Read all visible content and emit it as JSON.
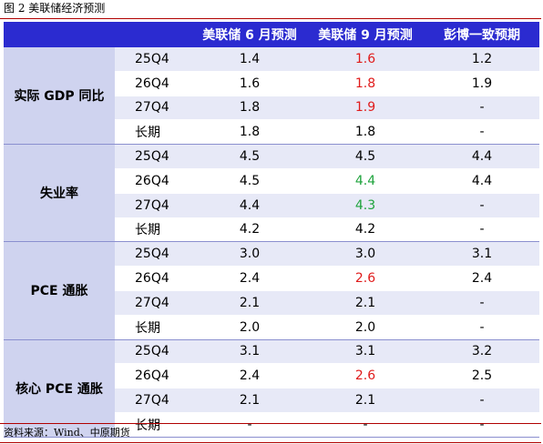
{
  "figure_title": "图 2  美联储经济预测",
  "source": "资料来源：Wind、中原期货",
  "header": [
    "",
    "",
    "美联储 6 月预测",
    "美联储 9 月预测",
    "彭博一致预期"
  ],
  "groups": [
    {
      "name": "实际 GDP 同比",
      "rows": [
        {
          "period": "25Q4",
          "jun": "1.4",
          "sep": "1.6",
          "sep_color": "red",
          "bbg": "1.2"
        },
        {
          "period": "26Q4",
          "jun": "1.6",
          "sep": "1.8",
          "sep_color": "red",
          "bbg": "1.9"
        },
        {
          "period": "27Q4",
          "jun": "1.8",
          "sep": "1.9",
          "sep_color": "red",
          "bbg": "-"
        },
        {
          "period": "长期",
          "jun": "1.8",
          "sep": "1.8",
          "sep_color": "",
          "bbg": "-"
        }
      ]
    },
    {
      "name": "失业率",
      "rows": [
        {
          "period": "25Q4",
          "jun": "4.5",
          "sep": "4.5",
          "sep_color": "",
          "bbg": "4.4"
        },
        {
          "period": "26Q4",
          "jun": "4.5",
          "sep": "4.4",
          "sep_color": "green",
          "bbg": "4.4"
        },
        {
          "period": "27Q4",
          "jun": "4.4",
          "sep": "4.3",
          "sep_color": "green",
          "bbg": "-"
        },
        {
          "period": "长期",
          "jun": "4.2",
          "sep": "4.2",
          "sep_color": "",
          "bbg": "-"
        }
      ]
    },
    {
      "name": "PCE 通胀",
      "rows": [
        {
          "period": "25Q4",
          "jun": "3.0",
          "sep": "3.0",
          "sep_color": "",
          "bbg": "3.1"
        },
        {
          "period": "26Q4",
          "jun": "2.4",
          "sep": "2.6",
          "sep_color": "red",
          "bbg": "2.4"
        },
        {
          "period": "27Q4",
          "jun": "2.1",
          "sep": "2.1",
          "sep_color": "",
          "bbg": "-"
        },
        {
          "period": "长期",
          "jun": "2.0",
          "sep": "2.0",
          "sep_color": "",
          "bbg": "-"
        }
      ]
    },
    {
      "name": "核心 PCE 通胀",
      "rows": [
        {
          "period": "25Q4",
          "jun": "3.1",
          "sep": "3.1",
          "sep_color": "",
          "bbg": "3.2"
        },
        {
          "period": "26Q4",
          "jun": "2.4",
          "sep": "2.6",
          "sep_color": "red",
          "bbg": "2.5"
        },
        {
          "period": "27Q4",
          "jun": "2.1",
          "sep": "2.1",
          "sep_color": "",
          "bbg": "-"
        },
        {
          "period": "长期",
          "jun": "-",
          "sep": "-",
          "sep_color": "",
          "bbg": "-"
        }
      ]
    }
  ]
}
